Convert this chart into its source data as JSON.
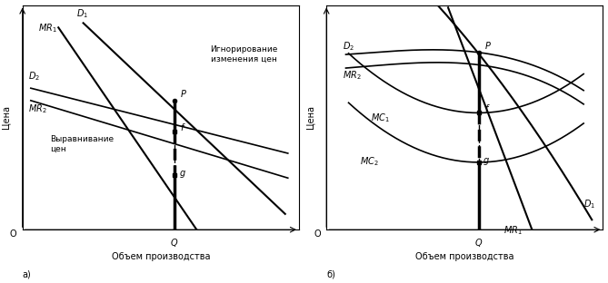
{
  "fig_width": 6.69,
  "fig_height": 3.12,
  "dpi": 100,
  "bg_color": "#ffffff",
  "line_color": "#000000",
  "panel_a": {
    "label": "а)",
    "ylabel": "Цена",
    "xlabel": "Объем производства",
    "origin_label": "O",
    "text_ignore": "Игнорирование\nизменения цен",
    "text_equal": "Выравнивание\nцен"
  },
  "panel_b": {
    "label": "б)",
    "ylabel": "Цена",
    "xlabel": "Объем производства",
    "origin_label": "O"
  }
}
